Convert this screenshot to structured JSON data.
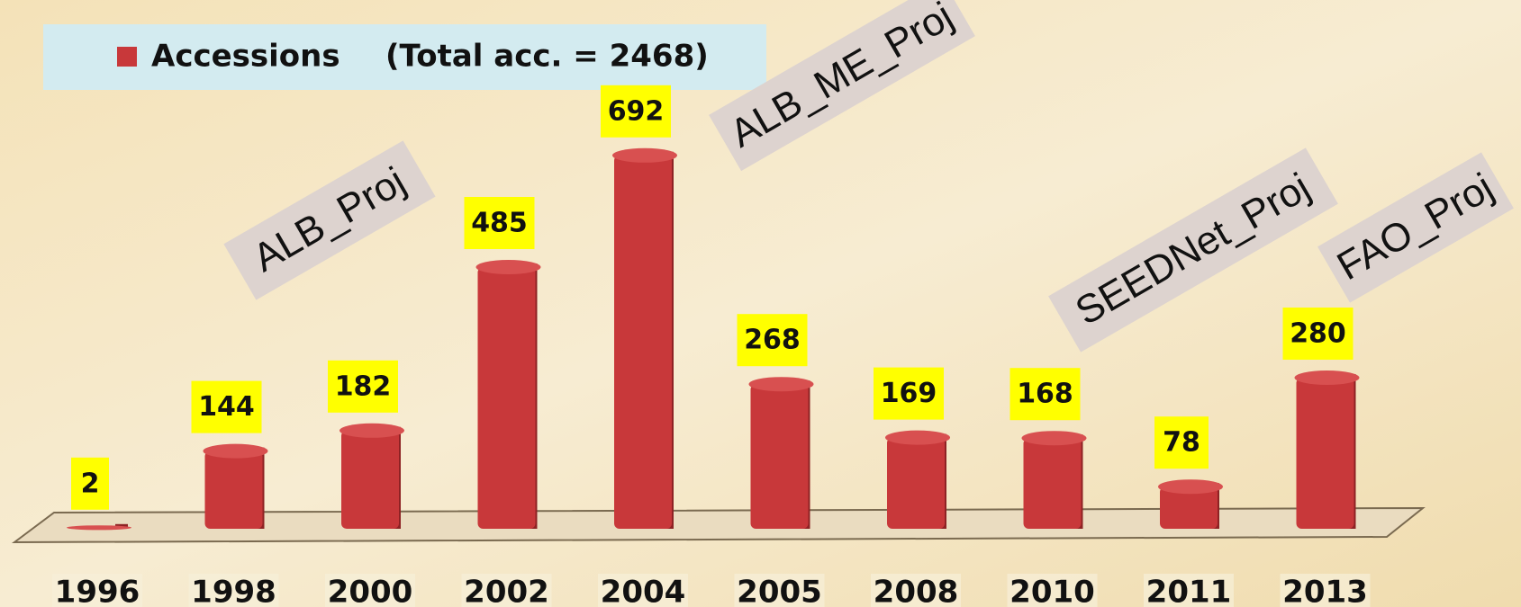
{
  "chart_data": {
    "type": "bar",
    "legend_note": "(Total acc. = 2468)",
    "categories": [
      "1996",
      "1998",
      "2000",
      "2002",
      "2004",
      "2005",
      "2008",
      "2010",
      "2011",
      "2013"
    ],
    "series": [
      {
        "name": "Accessions",
        "color": "#c8383a",
        "values": [
          2,
          144,
          182,
          485,
          692,
          268,
          169,
          168,
          78,
          280
        ]
      }
    ],
    "annotations": [
      "ALB_Proj",
      "ALB_ME_Proj",
      "SEEDNet_Proj",
      "FAO_Proj"
    ],
    "legend": "top-left"
  }
}
